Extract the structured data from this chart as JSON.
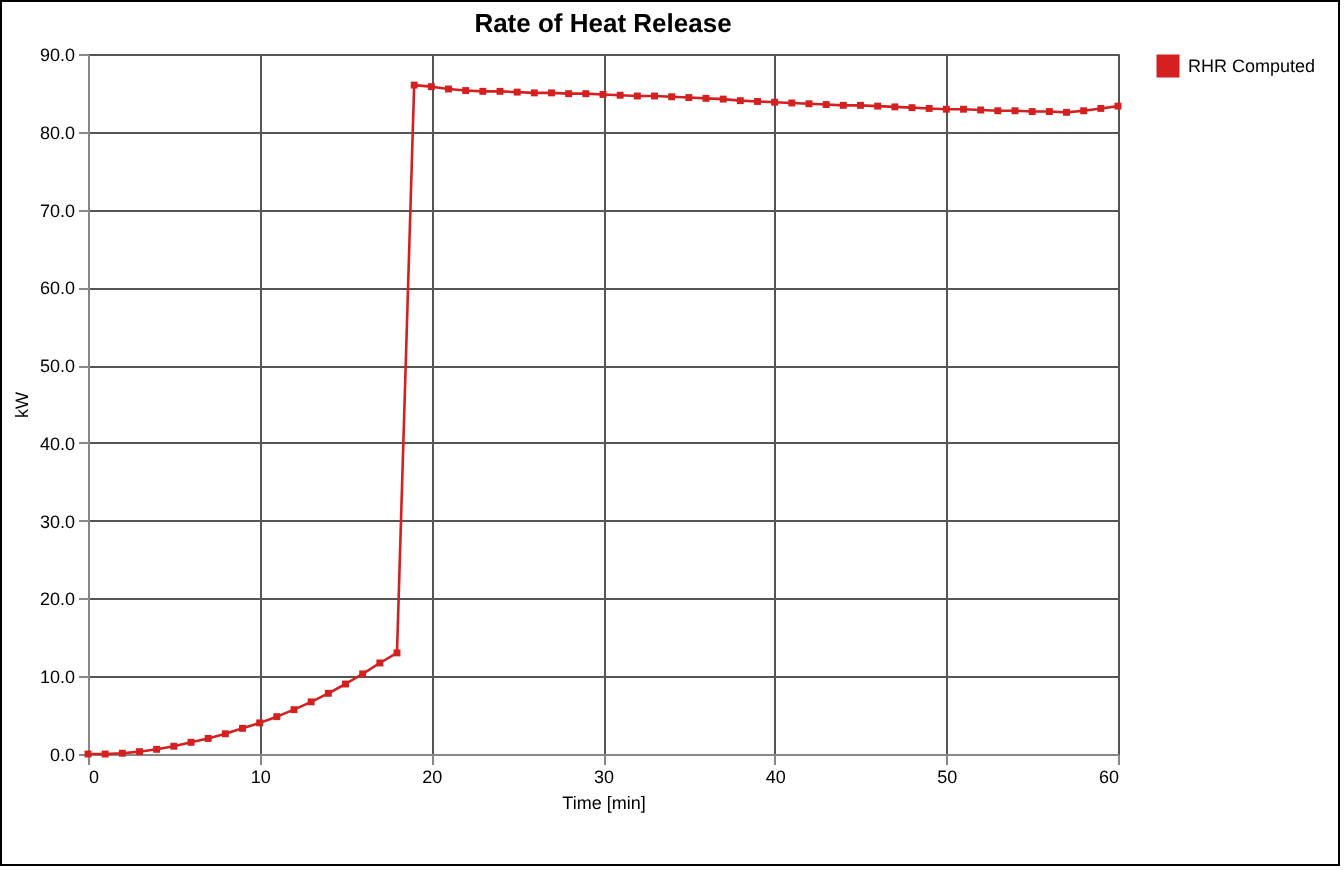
{
  "chart_data": {
    "type": "line",
    "title": "Rate of Heat Release",
    "xlabel": "Time [min]",
    "ylabel": "kW",
    "x": [
      0,
      1,
      2,
      3,
      4,
      5,
      6,
      7,
      8,
      9,
      10,
      11,
      12,
      13,
      14,
      15,
      16,
      17,
      18,
      19,
      20,
      21,
      22,
      23,
      24,
      25,
      26,
      27,
      28,
      29,
      30,
      31,
      32,
      33,
      34,
      35,
      36,
      37,
      38,
      39,
      40,
      41,
      42,
      43,
      44,
      45,
      46,
      47,
      48,
      49,
      50,
      51,
      52,
      53,
      54,
      55,
      56,
      57,
      58,
      59,
      60
    ],
    "series": [
      {
        "name": "RHR Computed",
        "color": "#d42020",
        "values": [
          0,
          0,
          0.1,
          0.3,
          0.6,
          1,
          1.5,
          2,
          2.6,
          3.3,
          4,
          4.8,
          5.7,
          6.7,
          7.8,
          9,
          10.3,
          11.7,
          13,
          86,
          85.8,
          85.5,
          85.3,
          85.2,
          85.2,
          85.1,
          85,
          85,
          84.9,
          84.9,
          84.8,
          84.7,
          84.6,
          84.6,
          84.5,
          84.4,
          84.3,
          84.2,
          84,
          83.9,
          83.8,
          83.7,
          83.6,
          83.5,
          83.4,
          83.4,
          83.3,
          83.2,
          83.1,
          83,
          82.9,
          82.9,
          82.8,
          82.7,
          82.7,
          82.6,
          82.6,
          82.5,
          82.7,
          83,
          83.3
        ]
      }
    ],
    "xlim": [
      0,
      60
    ],
    "xticks": [
      0,
      10,
      20,
      30,
      40,
      50,
      60
    ],
    "ylim": [
      0,
      90
    ],
    "yticks": [
      {
        "value": 0,
        "label": "0.0"
      },
      {
        "value": 10,
        "label": "10.0"
      },
      {
        "value": 20,
        "label": "20.0"
      },
      {
        "value": 30,
        "label": "30.0"
      },
      {
        "value": 40,
        "label": "40.0"
      },
      {
        "value": 50,
        "label": "50.0"
      },
      {
        "value": 60,
        "label": "60.0"
      },
      {
        "value": 70,
        "label": "70.0"
      },
      {
        "value": 80,
        "label": "80.0"
      },
      {
        "value": 90,
        "label": "90.0"
      }
    ],
    "grid": true,
    "legend": "right",
    "marker": "square",
    "line_style": "solid"
  }
}
